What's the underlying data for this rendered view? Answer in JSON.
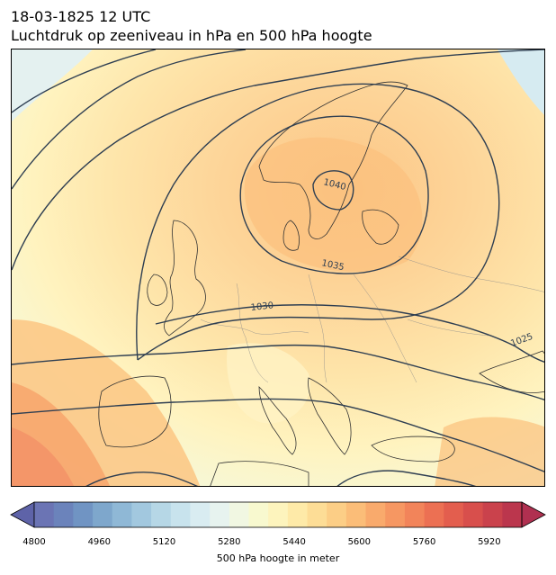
{
  "header": {
    "title_line1": "18-03-1825 12 UTC",
    "title_line2": "Luchtdruk op zeeniveau in hPa en 500 hPa hoogte"
  },
  "map": {
    "contour_labels": [
      "1040",
      "1035",
      "1030",
      "1025"
    ],
    "contour_color": "#2f3f52",
    "border_color": "#8a8a8a",
    "coast_color": "#333333"
  },
  "colorbar": {
    "min": 4800,
    "max": 6000,
    "step": 40,
    "extend": "both",
    "colormap": "RdYlBu_r (alpha)",
    "tick_labels": [
      "4800",
      "4960",
      "5120",
      "5280",
      "5440",
      "5600",
      "5760",
      "5920"
    ],
    "label": "500 hPa hoogte in meter",
    "colors": [
      "#6b74b4",
      "#6b83bb",
      "#7094c3",
      "#7ea7cc",
      "#8fb8d6",
      "#a2c8df",
      "#b6d7e6",
      "#c8e3ed",
      "#d9ecf1",
      "#e7f3ef",
      "#f1f7e2",
      "#f8f9cf",
      "#fdf4bd",
      "#feeaa8",
      "#fddd96",
      "#fcce86",
      "#fbbd78",
      "#f9aa6c",
      "#f69762",
      "#f2845a",
      "#ec7053",
      "#e35e4e",
      "#d84f4c",
      "#ca424c",
      "#bb364d"
    ],
    "under_color": "#5e63a8",
    "over_color": "#b03050"
  }
}
